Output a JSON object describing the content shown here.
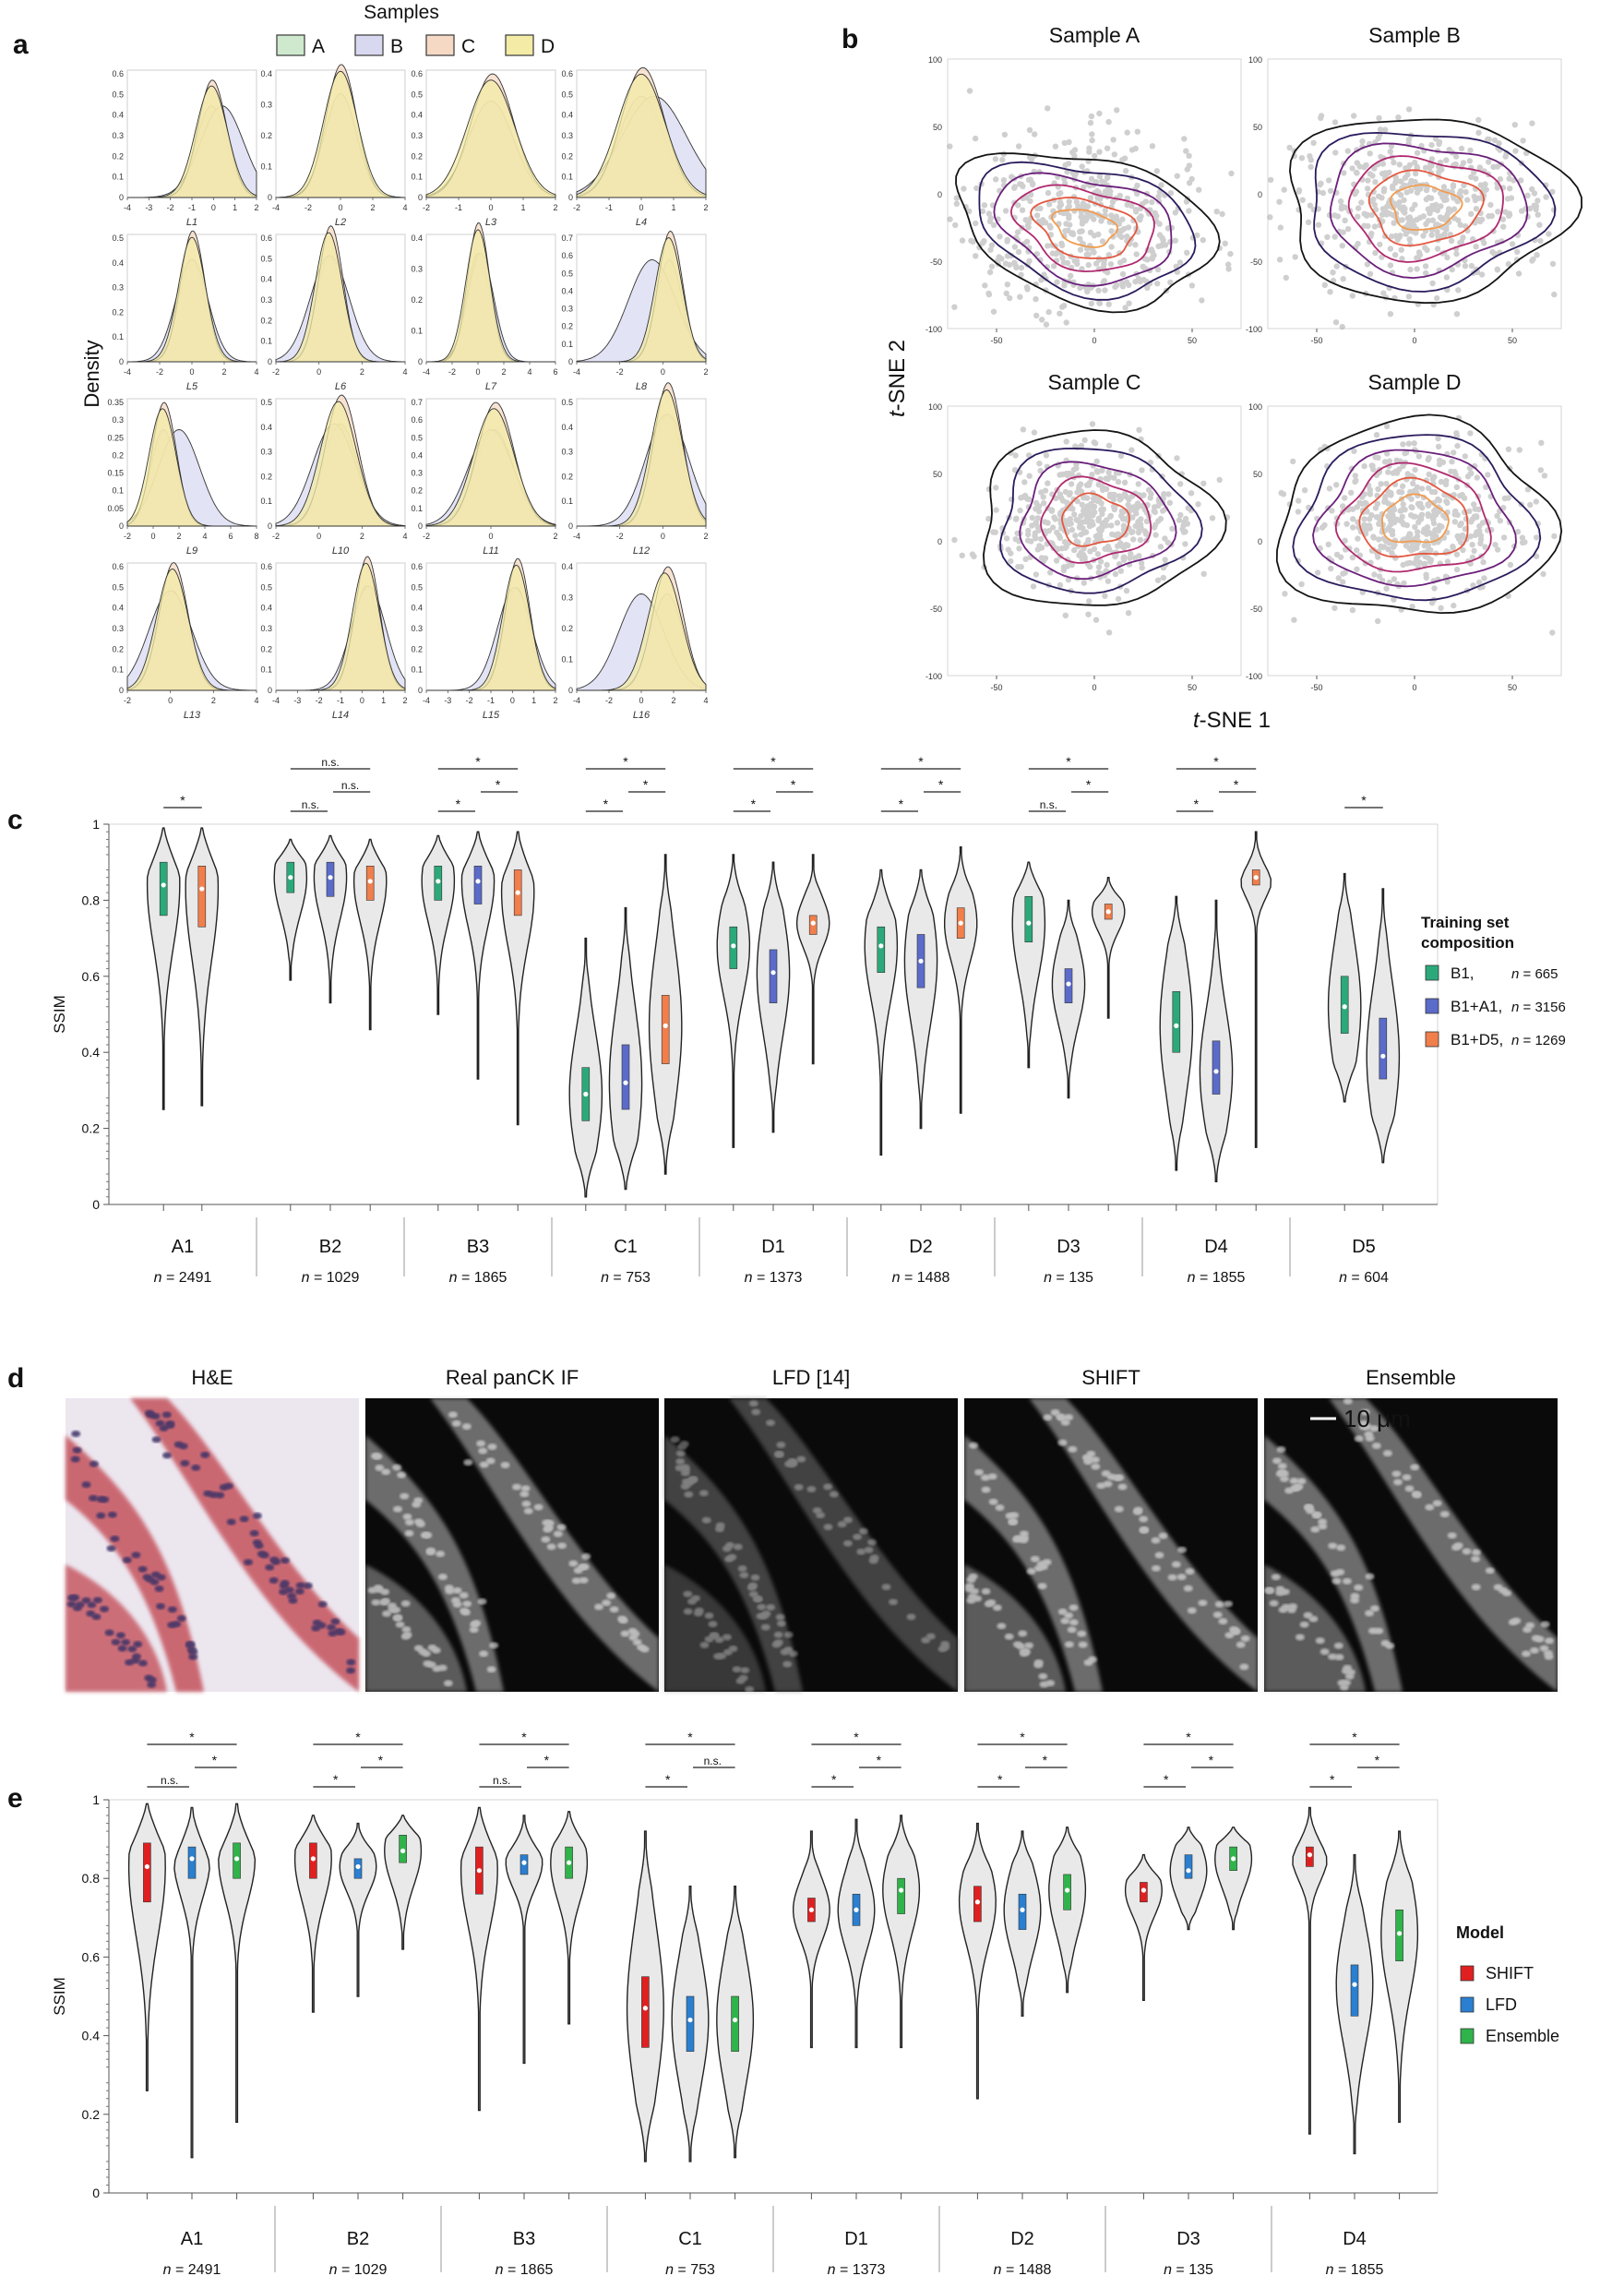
{
  "panel_letters": {
    "a": "a",
    "b": "b",
    "c": "c",
    "d": "d",
    "e": "e"
  },
  "colors": {
    "A": "#cfe9cf",
    "B": "#d8d9f0",
    "C": "#f6d9c4",
    "D": "#f3eba6",
    "B1": "#2ca97a",
    "B1_A1": "#5a6bc9",
    "B1_D5": "#f07f4c",
    "SHIFT": "#e02020",
    "LFD": "#2a7fd0",
    "Ensemble": "#2fb34a",
    "violin_fill": "#e9e9e9"
  },
  "panel_a": {
    "legend_title": "Samples",
    "legend": [
      "A",
      "B",
      "C",
      "D"
    ],
    "ylabel": "Density",
    "subplots": [
      {
        "xlabel": "L1",
        "xticks": [
          "-4",
          "-3",
          "-2",
          "-1",
          "0",
          "1",
          "2"
        ],
        "yticks": [
          "0",
          "0.1",
          "0.2",
          "0.3",
          "0.4",
          "0.5",
          "0.6"
        ]
      },
      {
        "xlabel": "L2",
        "xticks": [
          "-4",
          "-2",
          "0",
          "2",
          "4"
        ],
        "yticks": [
          "0",
          "0.1",
          "0.2",
          "0.3",
          "0.4"
        ]
      },
      {
        "xlabel": "L3",
        "xticks": [
          "-2",
          "-1",
          "0",
          "1",
          "2"
        ],
        "yticks": [
          "0",
          "0.1",
          "0.2",
          "0.3",
          "0.4",
          "0.5",
          "0.6"
        ]
      },
      {
        "xlabel": "L4",
        "xticks": [
          "-2",
          "-1",
          "0",
          "1",
          "2"
        ],
        "yticks": [
          "0",
          "0.1",
          "0.2",
          "0.3",
          "0.4",
          "0.5",
          "0.6"
        ]
      },
      {
        "xlabel": "L5",
        "xticks": [
          "-4",
          "-2",
          "0",
          "2",
          "4"
        ],
        "yticks": [
          "0",
          "0.1",
          "0.2",
          "0.3",
          "0.4",
          "0.5"
        ]
      },
      {
        "xlabel": "L6",
        "xticks": [
          "-2",
          "0",
          "2",
          "4"
        ],
        "yticks": [
          "0",
          "0.1",
          "0.2",
          "0.3",
          "0.4",
          "0.5",
          "0.6"
        ]
      },
      {
        "xlabel": "L7",
        "xticks": [
          "-4",
          "-2",
          "0",
          "2",
          "4",
          "6"
        ],
        "yticks": [
          "0",
          "0.1",
          "0.2",
          "0.3",
          "0.4"
        ]
      },
      {
        "xlabel": "L8",
        "xticks": [
          "-4",
          "-2",
          "0",
          "2"
        ],
        "yticks": [
          "0",
          "0.1",
          "0.2",
          "0.3",
          "0.4",
          "0.5",
          "0.6",
          "0.7"
        ]
      },
      {
        "xlabel": "L9",
        "xticks": [
          "-2",
          "0",
          "2",
          "4",
          "6",
          "8"
        ],
        "yticks": [
          "0",
          "0.05",
          "0.1",
          "0.15",
          "0.2",
          "0.25",
          "0.3",
          "0.35"
        ]
      },
      {
        "xlabel": "L10",
        "xticks": [
          "-2",
          "0",
          "2",
          "4"
        ],
        "yticks": [
          "0",
          "0.1",
          "0.2",
          "0.3",
          "0.4",
          "0.5"
        ]
      },
      {
        "xlabel": "L11",
        "xticks": [
          "-2",
          "0",
          "2"
        ],
        "yticks": [
          "0",
          "0.1",
          "0.2",
          "0.3",
          "0.4",
          "0.5",
          "0.6",
          "0.7"
        ]
      },
      {
        "xlabel": "L12",
        "xticks": [
          "-4",
          "-2",
          "0",
          "2"
        ],
        "yticks": [
          "0",
          "0.1",
          "0.2",
          "0.3",
          "0.4",
          "0.5"
        ]
      },
      {
        "xlabel": "L13",
        "xticks": [
          "-2",
          "0",
          "2",
          "4"
        ],
        "yticks": [
          "0",
          "0.1",
          "0.2",
          "0.3",
          "0.4",
          "0.5",
          "0.6"
        ]
      },
      {
        "xlabel": "L14",
        "xticks": [
          "-4",
          "-3",
          "-2",
          "-1",
          "0",
          "1",
          "2"
        ],
        "yticks": [
          "0",
          "0.1",
          "0.2",
          "0.3",
          "0.4",
          "0.5",
          "0.6"
        ]
      },
      {
        "xlabel": "L15",
        "xticks": [
          "-4",
          "-3",
          "-2",
          "-1",
          "0",
          "1",
          "2"
        ],
        "yticks": [
          "0",
          "0.1",
          "0.2",
          "0.3",
          "0.4",
          "0.5",
          "0.6"
        ]
      },
      {
        "xlabel": "L16",
        "xticks": [
          "-4",
          "-2",
          "0",
          "2",
          "4"
        ],
        "yticks": [
          "0",
          "0.1",
          "0.2",
          "0.3",
          "0.4"
        ]
      }
    ]
  },
  "panel_b": {
    "titles": [
      "Sample A",
      "Sample B",
      "Sample C",
      "Sample D"
    ],
    "xlabel_italic": "t",
    "xlabel_rest": "-SNE 1",
    "ylabel_italic": "t",
    "ylabel_rest": "-SNE 2",
    "xticks": [
      "-50",
      "0",
      "50"
    ],
    "yticks": [
      "100",
      "50",
      "0",
      "-50",
      "-100"
    ],
    "contour_colors": [
      "#141414",
      "#2b1b5c",
      "#6a1f7a",
      "#b0296f",
      "#e4573f",
      "#f29b4e"
    ]
  },
  "panel_c": {
    "ylabel": "SSIM",
    "yticks": [
      "0",
      "0.2",
      "0.4",
      "0.6",
      "0.8",
      "1"
    ],
    "legend_title": "Training set composition",
    "legend": [
      {
        "label": "B1,",
        "n": "n = 665"
      },
      {
        "label": "B1+A1,",
        "n": "n = 3156"
      },
      {
        "label": "B1+D5,",
        "n": "n = 1269"
      }
    ],
    "groups": [
      {
        "name": "A1",
        "n": "n = 2491"
      },
      {
        "name": "B2",
        "n": "n = 1029"
      },
      {
        "name": "B3",
        "n": "n = 1865"
      },
      {
        "name": "C1",
        "n": "n = 753"
      },
      {
        "name": "D1",
        "n": "n = 1373"
      },
      {
        "name": "D2",
        "n": "n = 1488"
      },
      {
        "name": "D3",
        "n": "n = 135"
      },
      {
        "name": "D4",
        "n": "n = 1855"
      },
      {
        "name": "D5",
        "n": "n = 604"
      }
    ],
    "sig_labels": {
      "A1": [
        "*"
      ],
      "B2": [
        "n.s.",
        "n.s.",
        "n.s."
      ],
      "B3": [
        "*",
        "*",
        "*"
      ],
      "C1": [
        "*",
        "*",
        "*"
      ],
      "D1": [
        "*",
        "*",
        "*"
      ],
      "D2": [
        "*",
        "*",
        "*"
      ],
      "D3": [
        "n.s.",
        "*",
        "*"
      ],
      "D4": [
        "*",
        "*",
        "*"
      ],
      "D5": [
        "*"
      ]
    }
  },
  "panel_d": {
    "titles": [
      "H&E",
      "Real panCK IF",
      "LFD [14]",
      "SHIFT",
      "Ensemble"
    ],
    "scale_bar": "10 μm"
  },
  "panel_e": {
    "ylabel": "SSIM",
    "yticks": [
      "0",
      "0.2",
      "0.4",
      "0.6",
      "0.8",
      "1"
    ],
    "legend_title": "Model",
    "legend": [
      "SHIFT",
      "LFD",
      "Ensemble"
    ],
    "groups": [
      {
        "name": "A1",
        "n": "n = 2491"
      },
      {
        "name": "B2",
        "n": "n = 1029"
      },
      {
        "name": "B3",
        "n": "n = 1865"
      },
      {
        "name": "C1",
        "n": "n = 753"
      },
      {
        "name": "D1",
        "n": "n = 1373"
      },
      {
        "name": "D2",
        "n": "n = 1488"
      },
      {
        "name": "D3",
        "n": "n = 135"
      },
      {
        "name": "D4",
        "n": "n = 1855"
      }
    ],
    "sig_labels": {
      "A1": [
        "n.s.",
        "*",
        "*"
      ],
      "B2": [
        "*",
        "*",
        "*"
      ],
      "B3": [
        "n.s.",
        "*",
        "*"
      ],
      "C1": [
        "*",
        "n.s.",
        "*"
      ],
      "D1": [
        "*",
        "*",
        "*"
      ],
      "D2": [
        "*",
        "*",
        "*"
      ],
      "D3": [
        "*",
        "*",
        "*"
      ],
      "D4": [
        "*",
        "*",
        "*"
      ]
    }
  },
  "chart_data": [
    {
      "type": "area",
      "panel": "a",
      "title": "",
      "ylabel": "Density",
      "series": [
        {
          "name": "A"
        },
        {
          "name": "B"
        },
        {
          "name": "C"
        },
        {
          "name": "D"
        }
      ],
      "latent_dims": [
        "L1",
        "L2",
        "L3",
        "L4",
        "L5",
        "L6",
        "L7",
        "L8",
        "L9",
        "L10",
        "L11",
        "L12",
        "L13",
        "L14",
        "L15",
        "L16"
      ],
      "peak_density": [
        0.57,
        0.43,
        0.6,
        0.63,
        0.53,
        0.66,
        0.45,
        0.74,
        0.35,
        0.53,
        0.7,
        0.58,
        0.62,
        0.65,
        0.64,
        0.4
      ],
      "peak_x": [
        0.1,
        0.2,
        0.1,
        0.1,
        0.3,
        0.6,
        0.3,
        0.4,
        0.8,
        1.0,
        0.2,
        0.3,
        0.2,
        0.3,
        0.3,
        1.6
      ]
    },
    {
      "type": "scatter",
      "panel": "b",
      "titles": [
        "Sample A",
        "Sample B",
        "Sample C",
        "Sample D"
      ],
      "xlim": [
        -75,
        75
      ],
      "ylim": [
        -100,
        100
      ]
    },
    {
      "type": "violin",
      "panel": "c",
      "ylabel": "SSIM",
      "ylim": [
        0,
        1
      ],
      "categories": [
        "A1",
        "B2",
        "B3",
        "C1",
        "D1",
        "D2",
        "D3",
        "D4",
        "D5"
      ],
      "series": [
        {
          "name": "B1, n = 665",
          "median": [
            0.84,
            0.86,
            0.85,
            0.29,
            0.68,
            0.68,
            0.74,
            0.47,
            0.52
          ],
          "q1": [
            0.76,
            0.82,
            0.8,
            0.22,
            0.62,
            0.61,
            0.69,
            0.4,
            0.45
          ],
          "q3": [
            0.9,
            0.9,
            0.89,
            0.36,
            0.73,
            0.73,
            0.81,
            0.56,
            0.6
          ],
          "min": [
            0.25,
            0.59,
            0.5,
            0.02,
            0.15,
            0.13,
            0.36,
            0.09,
            0.27
          ],
          "max": [
            0.99,
            0.96,
            0.97,
            0.7,
            0.92,
            0.88,
            0.9,
            0.81,
            0.87
          ]
        },
        {
          "name": "B1+A1, n = 3156",
          "median": [
            null,
            0.86,
            0.85,
            0.32,
            0.61,
            0.64,
            0.58,
            0.35,
            0.39
          ],
          "q1": [
            null,
            0.81,
            0.79,
            0.25,
            0.53,
            0.57,
            0.53,
            0.29,
            0.33
          ],
          "q3": [
            null,
            0.9,
            0.89,
            0.42,
            0.67,
            0.71,
            0.62,
            0.43,
            0.49
          ],
          "min": [
            null,
            0.53,
            0.33,
            0.04,
            0.19,
            0.2,
            0.28,
            0.06,
            0.11
          ],
          "max": [
            null,
            0.97,
            0.98,
            0.78,
            0.9,
            0.88,
            0.8,
            0.8,
            0.83
          ]
        },
        {
          "name": "B1+D5, n = 1269",
          "median": [
            0.83,
            0.85,
            0.82,
            0.47,
            0.74,
            0.74,
            0.77,
            0.86,
            null
          ],
          "q1": [
            0.73,
            0.8,
            0.76,
            0.37,
            0.71,
            0.7,
            0.75,
            0.84,
            null
          ],
          "q3": [
            0.89,
            0.89,
            0.88,
            0.55,
            0.76,
            0.78,
            0.79,
            0.88,
            null
          ],
          "min": [
            0.26,
            0.46,
            0.21,
            0.08,
            0.37,
            0.24,
            0.49,
            0.15,
            null
          ],
          "max": [
            0.99,
            0.96,
            0.98,
            0.92,
            0.92,
            0.94,
            0.86,
            0.98,
            null
          ]
        }
      ]
    },
    {
      "type": "violin",
      "panel": "e",
      "ylabel": "SSIM",
      "ylim": [
        0,
        1
      ],
      "categories": [
        "A1",
        "B2",
        "B3",
        "C1",
        "D1",
        "D2",
        "D3",
        "D4"
      ],
      "series": [
        {
          "name": "SHIFT",
          "median": [
            0.83,
            0.85,
            0.82,
            0.47,
            0.72,
            0.74,
            0.77,
            0.86
          ],
          "q1": [
            0.74,
            0.8,
            0.76,
            0.37,
            0.69,
            0.69,
            0.74,
            0.83
          ],
          "q3": [
            0.89,
            0.89,
            0.88,
            0.55,
            0.75,
            0.78,
            0.79,
            0.88
          ],
          "min": [
            0.26,
            0.46,
            0.21,
            0.08,
            0.37,
            0.24,
            0.49,
            0.15
          ],
          "max": [
            0.99,
            0.96,
            0.98,
            0.92,
            0.92,
            0.94,
            0.86,
            0.98
          ]
        },
        {
          "name": "LFD",
          "median": [
            0.85,
            0.83,
            0.84,
            0.44,
            0.72,
            0.72,
            0.82,
            0.53
          ],
          "q1": [
            0.8,
            0.8,
            0.81,
            0.36,
            0.68,
            0.67,
            0.8,
            0.45
          ],
          "q3": [
            0.88,
            0.85,
            0.86,
            0.5,
            0.76,
            0.76,
            0.86,
            0.58
          ],
          "min": [
            0.09,
            0.5,
            0.33,
            0.08,
            0.37,
            0.45,
            0.67,
            0.1
          ],
          "max": [
            0.98,
            0.94,
            0.96,
            0.78,
            0.95,
            0.92,
            0.93,
            0.86
          ]
        },
        {
          "name": "Ensemble",
          "median": [
            0.85,
            0.87,
            0.84,
            0.44,
            0.77,
            0.77,
            0.85,
            0.66
          ],
          "q1": [
            0.8,
            0.84,
            0.8,
            0.36,
            0.71,
            0.72,
            0.82,
            0.59
          ],
          "q3": [
            0.89,
            0.91,
            0.88,
            0.5,
            0.8,
            0.81,
            0.88,
            0.72
          ],
          "min": [
            0.18,
            0.62,
            0.43,
            0.09,
            0.37,
            0.51,
            0.67,
            0.18
          ],
          "max": [
            0.99,
            0.96,
            0.97,
            0.78,
            0.96,
            0.93,
            0.93,
            0.92
          ]
        }
      ]
    }
  ]
}
